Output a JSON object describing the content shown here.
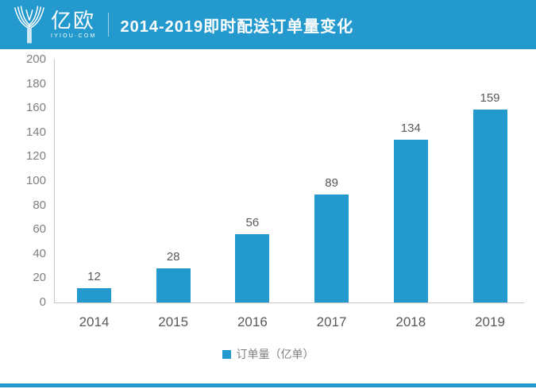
{
  "header": {
    "logo_text": "亿欧",
    "logo_subtext": "IYIOU·COM",
    "title": "2014-2019即时配送订单量变化"
  },
  "legend": {
    "label": "订单量（亿单）"
  },
  "colors": {
    "brand_blue": "#2499CE",
    "bar": "#2499CE",
    "axis_line": "#C6C6C6",
    "tick_label": "#7F7F7F",
    "value_label": "#595959",
    "legend_text": "#7F7F7F"
  },
  "chart_data": {
    "type": "bar",
    "title": "2014-2019即时配送订单量变化",
    "categories": [
      "2014",
      "2015",
      "2016",
      "2017",
      "2018",
      "2019"
    ],
    "values": [
      12,
      28,
      56,
      89,
      134,
      159
    ],
    "series_name": "订单量（亿单）",
    "xlabel": "",
    "ylabel": "",
    "ylim": [
      0,
      200
    ],
    "ytick_step": 20,
    "grid": false,
    "legend_position": "bottom",
    "bar_color": "#2499CE"
  }
}
